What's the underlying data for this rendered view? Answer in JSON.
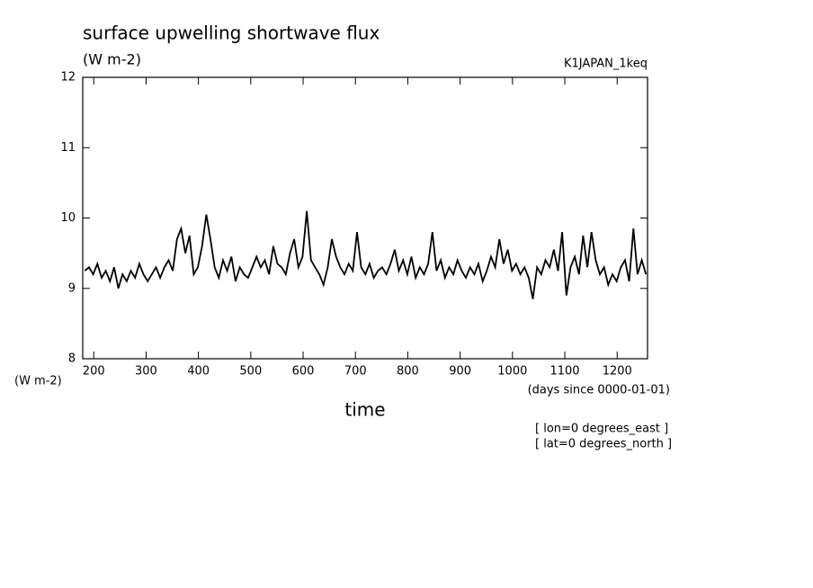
{
  "chart_data": {
    "type": "line",
    "title": "surface upwelling shortwave flux",
    "units": "(W m-2)",
    "dataset": "K1JAPAN_1keq",
    "y_label": "(W m-2)",
    "x_units": "(days since 0000-01-01)",
    "x_label": "time",
    "annotations": [
      "[ lon=0 degrees_east ]",
      "[ lat=0 degrees_north ]"
    ],
    "xlim": [
      179,
      1258
    ],
    "ylim": [
      8,
      12
    ],
    "xticks": [
      200,
      300,
      400,
      500,
      600,
      700,
      800,
      900,
      1000,
      1100,
      1200
    ],
    "yticks": [
      8,
      9,
      10,
      11,
      12
    ],
    "color": "#000000",
    "x": [
      183,
      191,
      199,
      207,
      215,
      223,
      231,
      239,
      247,
      255,
      263,
      271,
      279,
      287,
      295,
      303,
      311,
      319,
      327,
      335,
      343,
      351,
      359,
      367,
      375,
      383,
      391,
      399,
      407,
      415,
      423,
      431,
      439,
      447,
      455,
      463,
      471,
      479,
      487,
      495,
      503,
      511,
      519,
      527,
      535,
      543,
      551,
      559,
      567,
      575,
      583,
      591,
      599,
      607,
      615,
      623,
      631,
      639,
      647,
      655,
      663,
      671,
      679,
      687,
      695,
      703,
      711,
      719,
      727,
      735,
      743,
      751,
      759,
      767,
      775,
      783,
      791,
      799,
      807,
      815,
      823,
      831,
      839,
      847,
      855,
      863,
      871,
      879,
      887,
      895,
      903,
      911,
      919,
      927,
      935,
      943,
      951,
      959,
      967,
      975,
      983,
      991,
      999,
      1007,
      1015,
      1023,
      1031,
      1039,
      1047,
      1055,
      1063,
      1071,
      1079,
      1087,
      1095,
      1103,
      1111,
      1119,
      1127,
      1135,
      1143,
      1151,
      1159,
      1167,
      1175,
      1183,
      1191,
      1199,
      1207,
      1215,
      1223,
      1231,
      1239,
      1247,
      1255
    ],
    "values": [
      9.25,
      9.3,
      9.2,
      9.35,
      9.15,
      9.25,
      9.1,
      9.3,
      9.0,
      9.2,
      9.1,
      9.25,
      9.15,
      9.35,
      9.2,
      9.1,
      9.2,
      9.3,
      9.15,
      9.3,
      9.4,
      9.25,
      9.7,
      9.85,
      9.5,
      9.75,
      9.2,
      9.3,
      9.6,
      10.05,
      9.7,
      9.3,
      9.15,
      9.4,
      9.25,
      9.45,
      9.1,
      9.3,
      9.2,
      9.15,
      9.3,
      9.45,
      9.3,
      9.4,
      9.2,
      9.6,
      9.35,
      9.3,
      9.2,
      9.5,
      9.7,
      9.3,
      9.45,
      10.1,
      9.4,
      9.3,
      9.2,
      9.05,
      9.3,
      9.7,
      9.45,
      9.3,
      9.2,
      9.35,
      9.25,
      9.8,
      9.3,
      9.2,
      9.35,
      9.15,
      9.25,
      9.3,
      9.2,
      9.35,
      9.55,
      9.25,
      9.4,
      9.2,
      9.45,
      9.15,
      9.3,
      9.2,
      9.35,
      9.8,
      9.25,
      9.4,
      9.15,
      9.3,
      9.2,
      9.4,
      9.25,
      9.15,
      9.3,
      9.2,
      9.35,
      9.1,
      9.25,
      9.45,
      9.3,
      9.7,
      9.35,
      9.55,
      9.25,
      9.35,
      9.2,
      9.3,
      9.15,
      8.85,
      9.3,
      9.2,
      9.4,
      9.3,
      9.55,
      9.25,
      9.8,
      8.9,
      9.3,
      9.45,
      9.2,
      9.75,
      9.3,
      9.8,
      9.4,
      9.2,
      9.3,
      9.05,
      9.2,
      9.1,
      9.3,
      9.4,
      9.1,
      9.85,
      9.2,
      9.4,
      9.2
    ]
  }
}
